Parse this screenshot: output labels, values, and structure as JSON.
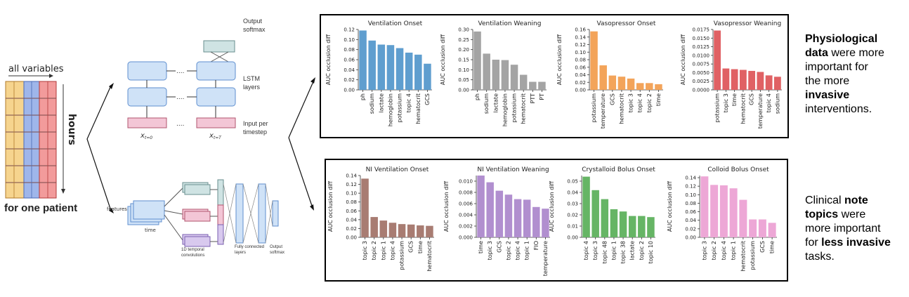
{
  "left": {
    "all_variables": "all variables",
    "hours": "hours",
    "for_one_patient": "for one patient"
  },
  "lstm": {
    "output_label": "Output\nsoftmax",
    "lstm_label": "LSTM\nlayers",
    "input_label": "Input per\ntimestep",
    "x0": "x",
    "x0_sub": "t=0",
    "xT": "x",
    "xT_sub": "t=T",
    "dots": "...."
  },
  "cnn": {
    "features": "features",
    "time": "time",
    "conv_label": "1D temporal\nconvolutions",
    "fc_label": "Fully connected\nlayers",
    "out_label": "Output\nsoftmax"
  },
  "side": {
    "top_text": [
      {
        "t": "Physiological",
        "b": true
      },
      {
        "t": " data",
        "b": true,
        "nl": true
      },
      {
        "t": " were more"
      },
      {
        "t": "important for",
        "nl": true
      },
      {
        "t": "the more",
        "nl": true
      },
      {
        "t": "invasive",
        "b": true,
        "nl": true
      },
      {
        "t": "interventions.",
        "nl": true
      }
    ],
    "bottom_text": [
      {
        "t": "Clinical "
      },
      {
        "t": "note",
        "b": true
      },
      {
        "t": "topics",
        "b": true,
        "nl": true
      },
      {
        "t": " were"
      },
      {
        "t": "more important",
        "nl": true
      },
      {
        "t": "for ",
        "nl": true
      },
      {
        "t": "less invasive",
        "b": true
      },
      {
        "t": "tasks.",
        "nl": true
      }
    ]
  },
  "chart_data": [
    {
      "type": "bar",
      "title": "Ventilation Onset",
      "ylabel": "AUC occlusion diff",
      "color": "#5f9ecf",
      "categories": [
        "ph",
        "sodium",
        "lactate",
        "hemoglobin",
        "potassium",
        "topic 4",
        "hematocrit",
        "GCS"
      ],
      "values": [
        0.118,
        0.098,
        0.09,
        0.089,
        0.083,
        0.074,
        0.07,
        0.052
      ],
      "ylim": [
        0,
        0.12
      ],
      "yticks": [
        "0.00",
        "0.02",
        "0.04",
        "0.06",
        "0.08",
        "0.10",
        "0.12"
      ]
    },
    {
      "type": "bar",
      "title": "Ventilation Weaning",
      "ylabel": "AUC occlusion diff",
      "color": "#a4a4a4",
      "categories": [
        "ph",
        "sodium",
        "lactate",
        "hemoglobin",
        "potassium",
        "hematocrit",
        "PTT",
        "PT"
      ],
      "values": [
        0.29,
        0.18,
        0.15,
        0.148,
        0.125,
        0.075,
        0.04,
        0.04
      ],
      "ylim": [
        0,
        0.3
      ],
      "yticks": [
        "0.00",
        "0.05",
        "0.10",
        "0.15",
        "0.20",
        "0.25",
        "0.30"
      ]
    },
    {
      "type": "bar",
      "title": "Vasopressor Onset",
      "ylabel": "AUC occlusion diff",
      "color": "#f3a45a",
      "categories": [
        "potassium",
        "temperature",
        "GCS",
        "hematocrit",
        "topic 3",
        "topic 4",
        "topic 2",
        "time"
      ],
      "values": [
        0.155,
        0.065,
        0.038,
        0.035,
        0.03,
        0.018,
        0.018,
        0.015
      ],
      "ylim": [
        0,
        0.16
      ],
      "yticks": [
        "0.00",
        "0.02",
        "0.04",
        "0.06",
        "0.08",
        "0.10",
        "0.12",
        "0.14",
        "0.16"
      ]
    },
    {
      "type": "bar",
      "title": "Vasopressor Weaning",
      "ylabel": "AUC occlusion diff",
      "color": "#e06164",
      "categories": [
        "potassium",
        "topic 3",
        "time",
        "hematocrit",
        "GCS",
        "temperature",
        "topic 4",
        "sodium"
      ],
      "values": [
        0.0172,
        0.0062,
        0.006,
        0.0058,
        0.0055,
        0.0052,
        0.0042,
        0.0038
      ],
      "ylim": [
        0,
        0.0175
      ],
      "yticks": [
        "0.0000",
        "0.0025",
        "0.0050",
        "0.0075",
        "0.0100",
        "0.0125",
        "0.0150",
        "0.0175"
      ]
    },
    {
      "type": "bar",
      "title": "NI Ventilation Onset",
      "ylabel": "AUC occlusion diff",
      "color": "#a87c72",
      "categories": [
        "topic 3",
        "topic 2",
        "topic 1",
        "topic 4",
        "potassium",
        "GCS",
        "time",
        "hematocrit"
      ],
      "values": [
        0.133,
        0.046,
        0.038,
        0.033,
        0.03,
        0.029,
        0.027,
        0.026
      ],
      "ylim": [
        0,
        0.14
      ],
      "yticks": [
        "0.00",
        "0.02",
        "0.04",
        "0.06",
        "0.08",
        "0.10",
        "0.12",
        "0.14"
      ]
    },
    {
      "type": "bar",
      "title": "NI Ventilation Weaning",
      "ylabel": "AUC occlusion diff",
      "color": "#b18fcf",
      "categories": [
        "time",
        "topic 3",
        "GCS",
        "topic 2",
        "topic 4",
        "topic 1",
        "FIO",
        "temperature"
      ],
      "values": [
        0.011,
        0.0098,
        0.0083,
        0.0076,
        0.0068,
        0.0067,
        0.0054,
        0.0051
      ],
      "ylim": [
        0,
        0.011
      ],
      "yticks": [
        "0.000",
        "0.002",
        "0.004",
        "0.006",
        "0.008",
        "0.010"
      ]
    },
    {
      "type": "bar",
      "title": "Crystalloid Bolus Onset",
      "ylabel": "AUC occlusion diff",
      "color": "#66b565",
      "categories": [
        "topic 4",
        "topic 3",
        "topic 48",
        "topic 1",
        "topic 38",
        "lactate",
        "topic 2",
        "topic 10"
      ],
      "values": [
        0.054,
        0.042,
        0.034,
        0.025,
        0.023,
        0.019,
        0.019,
        0.018
      ],
      "ylim": [
        0,
        0.055
      ],
      "yticks": [
        "0.00",
        "0.01",
        "0.02",
        "0.03",
        "0.04",
        "0.05"
      ]
    },
    {
      "type": "bar",
      "title": "Colloid Bolus Onset",
      "ylabel": "AUC occlusion diff",
      "color": "#eda7d6",
      "categories": [
        "topic 3",
        "topic 2",
        "topic 4",
        "topic 1",
        "hematocrit",
        "potassium",
        "GCS",
        "time"
      ],
      "values": [
        0.143,
        0.123,
        0.122,
        0.115,
        0.088,
        0.042,
        0.042,
        0.034
      ],
      "ylim": [
        0,
        0.145
      ],
      "yticks": [
        "0.00",
        "0.02",
        "0.04",
        "0.06",
        "0.08",
        "0.10",
        "0.12",
        "0.14"
      ]
    }
  ]
}
